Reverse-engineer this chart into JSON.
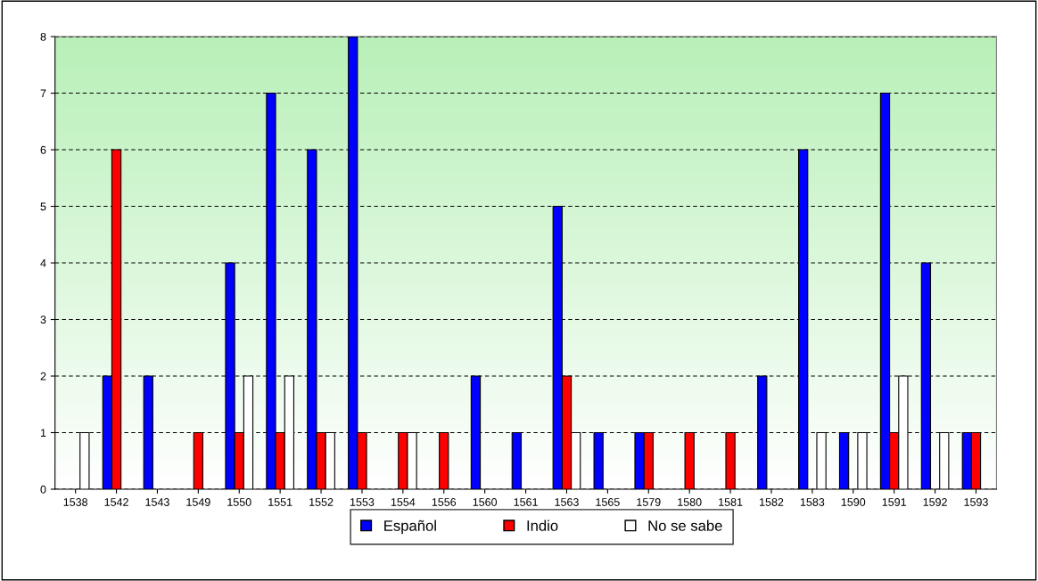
{
  "chart_data": {
    "type": "bar",
    "categories": [
      "1538",
      "1542",
      "1543",
      "1549",
      "1550",
      "1551",
      "1552",
      "1553",
      "1554",
      "1556",
      "1560",
      "1561",
      "1563",
      "1565",
      "1579",
      "1580",
      "1581",
      "1582",
      "1583",
      "1590",
      "1591",
      "1592",
      "1593"
    ],
    "series": [
      {
        "name": "Español",
        "color": "#0000ff",
        "values": [
          null,
          2,
          2,
          null,
          4,
          7,
          6,
          8,
          null,
          null,
          2,
          1,
          5,
          1,
          1,
          null,
          null,
          2,
          6,
          1,
          7,
          4,
          1
        ]
      },
      {
        "name": "Indio",
        "color": "#ff0000",
        "values": [
          null,
          6,
          null,
          1,
          1,
          1,
          1,
          1,
          1,
          1,
          null,
          null,
          2,
          null,
          1,
          1,
          1,
          null,
          null,
          null,
          1,
          null,
          1
        ]
      },
      {
        "name": "No se sabe",
        "color": "#ffffff",
        "values": [
          1,
          null,
          null,
          null,
          2,
          2,
          1,
          null,
          1,
          null,
          null,
          null,
          1,
          null,
          null,
          null,
          null,
          null,
          1,
          1,
          2,
          1,
          null
        ]
      }
    ],
    "ylim": [
      0,
      8
    ],
    "yticks": [
      0,
      1,
      2,
      3,
      4,
      5,
      6,
      7,
      8
    ],
    "grid": "y",
    "legend": "bottom"
  }
}
